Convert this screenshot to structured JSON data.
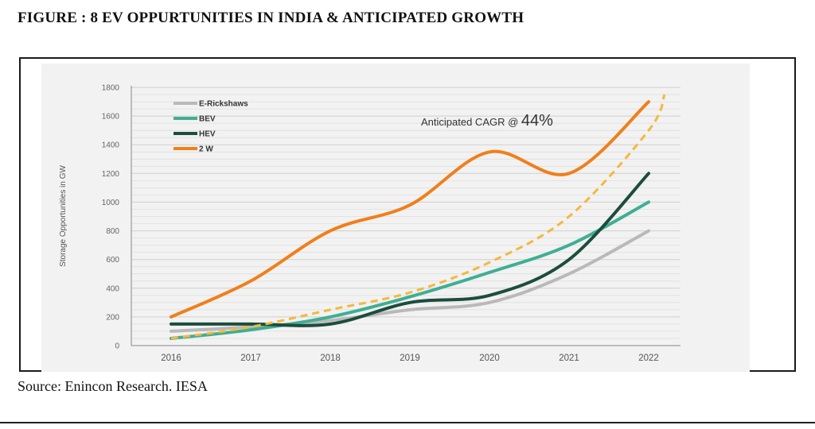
{
  "figure_title": "FIGURE : 8 EV OPPURTUNITIES IN INDIA & ANTICIPATED GROWTH",
  "source_text": "Source: Enincon Research. IESA",
  "chart_data": {
    "type": "line",
    "title": "",
    "xlabel": "",
    "ylabel": "Storage Opportunities in GW",
    "categories": [
      "2016",
      "2017",
      "2018",
      "2019",
      "2020",
      "2021",
      "2022"
    ],
    "ylim": [
      0,
      1800
    ],
    "yticks": [
      0,
      200,
      400,
      600,
      800,
      1000,
      1200,
      1400,
      1600,
      1800
    ],
    "grid": true,
    "legend_position": "top-left",
    "series": [
      {
        "name": "E-Rickshaws",
        "color": "#b9b9b9",
        "values": [
          100,
          130,
          175,
          250,
          300,
          500,
          800
        ]
      },
      {
        "name": "BEV",
        "color": "#3fae94",
        "values": [
          50,
          110,
          200,
          340,
          510,
          700,
          1000
        ]
      },
      {
        "name": "HEV",
        "color": "#1c4d3c",
        "values": [
          150,
          150,
          150,
          300,
          350,
          600,
          1200
        ]
      },
      {
        "name": "2 W",
        "color": "#f07f1c",
        "values": [
          200,
          450,
          800,
          980,
          1350,
          1200,
          1700
        ]
      }
    ],
    "projection": {
      "name": "Anticipated CAGR trend",
      "color": "#f6b73c",
      "style": "dashed",
      "x": [
        2016,
        2017,
        2018,
        2019,
        2020,
        2021,
        2022,
        2022.2
      ],
      "values": [
        50,
        130,
        250,
        370,
        580,
        900,
        1500,
        1750
      ]
    },
    "annotation": {
      "prefix": "Anticipated CAGR @ ",
      "value": "44%"
    }
  }
}
